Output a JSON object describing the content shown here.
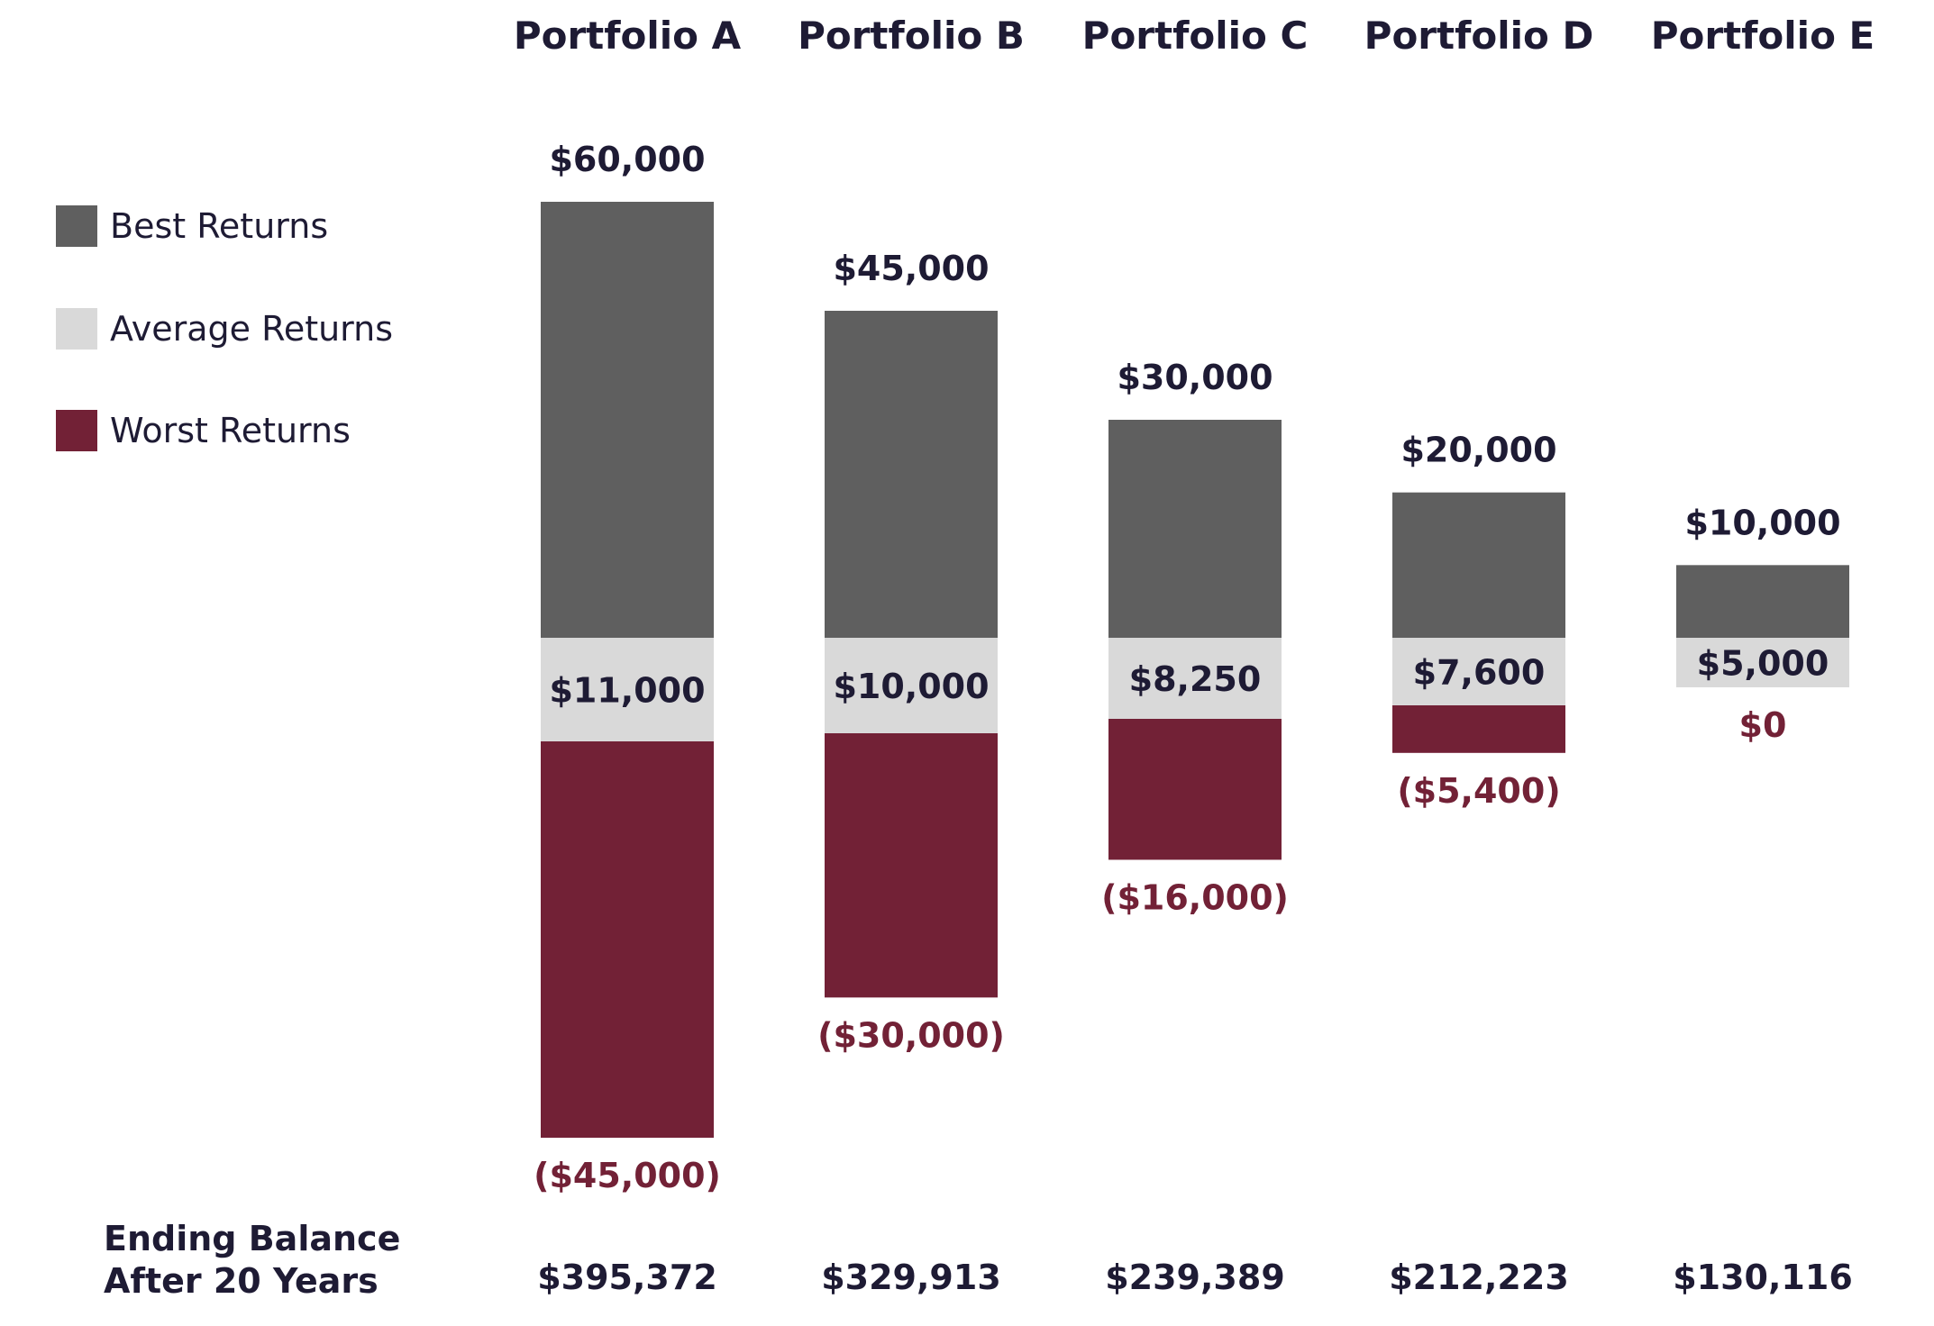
{
  "chart_data": {
    "type": "bar",
    "title": "",
    "xlabel": "",
    "ylabel": "",
    "categories": [
      "Portfolio A",
      "Portfolio B",
      "Portfolio C",
      "Portfolio D",
      "Portfolio E"
    ],
    "series": [
      {
        "name": "Best Returns",
        "color": "#5f5f5f",
        "values": [
          60000,
          45000,
          30000,
          20000,
          10000
        ],
        "labels": [
          "$60,000",
          "$45,000",
          "$30,000",
          "$20,000",
          "$10,000"
        ]
      },
      {
        "name": "Average Returns",
        "color": "#d9d9d9",
        "values": [
          11000,
          10000,
          8250,
          7600,
          5000
        ],
        "labels": [
          "$11,000",
          "$10,000",
          "$8,250",
          "$7,600",
          "$5,000"
        ]
      },
      {
        "name": "Worst Returns",
        "color": "#722136",
        "values": [
          -45000,
          -30000,
          -16000,
          -5400,
          0
        ],
        "labels": [
          "($45,000)",
          "($30,000)",
          "($16,000)",
          "($5,400)",
          "$0"
        ]
      }
    ],
    "ending_balance": {
      "label_lines": [
        "Ending Balance",
        "After 20 Years"
      ],
      "values": [
        395372,
        329913,
        239389,
        212223,
        130116
      ],
      "labels": [
        "$395,372",
        "$329,913",
        "$239,389",
        "$212,223",
        "$130,116"
      ]
    },
    "legend_position": "left",
    "grid": false
  },
  "colors": {
    "text_dark": "#1e1b34",
    "worst_text": "#722136"
  }
}
